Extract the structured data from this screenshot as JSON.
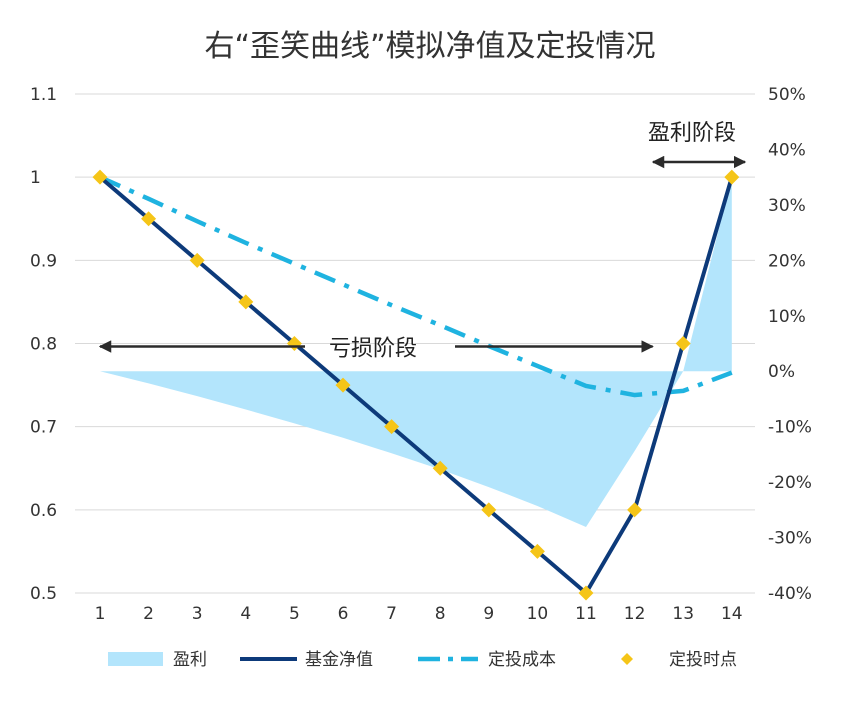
{
  "chart_data": {
    "type": "line",
    "title": "右“歪笑曲线”模拟净值及定投情况",
    "categories": [
      "1",
      "2",
      "3",
      "4",
      "5",
      "6",
      "7",
      "8",
      "9",
      "10",
      "11",
      "12",
      "13",
      "14"
    ],
    "y_left": {
      "ylim": [
        0.5,
        1.1
      ],
      "ticks": [
        1.1,
        1,
        0.9,
        0.8,
        0.7,
        0.6,
        0.5
      ],
      "tick_labels": [
        "1.1",
        "1",
        "0.9",
        "0.8",
        "0.7",
        "0.6",
        "0.5"
      ]
    },
    "y_right": {
      "ylim": [
        -0.4,
        0.5
      ],
      "ticks": [
        0.5,
        0.4,
        0.3,
        0.2,
        0.1,
        0,
        -0.1,
        -0.2,
        -0.3,
        -0.4
      ],
      "tick_labels": [
        "50%",
        "40%",
        "30%",
        "20%",
        "10%",
        "0%",
        "-10%",
        "-20%",
        "-30%",
        "-40%"
      ]
    },
    "grid": true,
    "legend_position": "bottom",
    "series": [
      {
        "name": "盈利",
        "kind": "area",
        "axis": "right",
        "color": "#b3e5fc",
        "values": [
          0,
          -0.022,
          -0.045,
          -0.069,
          -0.094,
          -0.12,
          -0.148,
          -0.177,
          -0.209,
          -0.243,
          -0.281,
          -0.144,
          0.0,
          0.35
        ]
      },
      {
        "name": "基金净值",
        "kind": "line",
        "axis": "left",
        "color": "#0d3a7a",
        "values": [
          1,
          0.95,
          0.9,
          0.85,
          0.8,
          0.75,
          0.7,
          0.65,
          0.6,
          0.55,
          0.5,
          0.6,
          0.8,
          1
        ]
      },
      {
        "name": "定投成本",
        "kind": "dashdot",
        "axis": "left",
        "color": "#1fb3e0",
        "values": [
          1,
          0.974,
          0.947,
          0.921,
          0.896,
          0.871,
          0.846,
          0.822,
          0.797,
          0.773,
          0.749,
          0.738,
          0.743,
          0.765
        ]
      },
      {
        "name": "定投时点",
        "kind": "marker",
        "axis": "left",
        "color": "#f5c518",
        "values": [
          1,
          0.95,
          0.9,
          0.85,
          0.8,
          0.75,
          0.7,
          0.65,
          0.6,
          0.55,
          0.5,
          0.6,
          0.8,
          1
        ]
      }
    ],
    "annotations": [
      {
        "text": "亏损阶段",
        "from": "1",
        "to": "12",
        "y": 0.8
      },
      {
        "text": "盈利阶段",
        "from": "13",
        "to": "14",
        "y": 1.02
      }
    ]
  }
}
